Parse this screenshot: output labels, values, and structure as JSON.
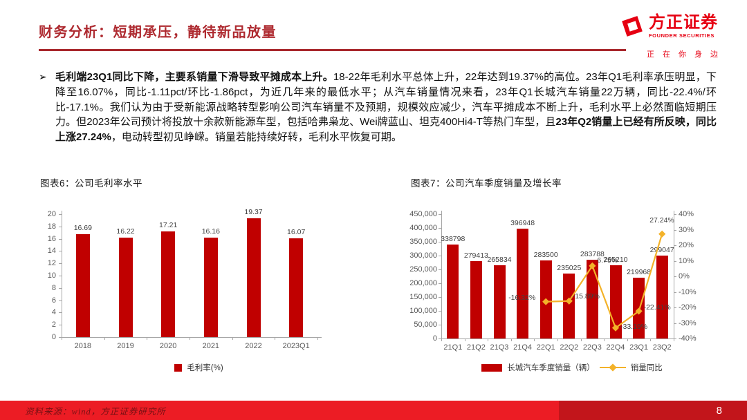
{
  "header": {
    "title": "财务分析：短期承压，静待新品放量",
    "logo": {
      "name": "方正证券",
      "sub": "FOUNDER SECURITIES",
      "tagline": "正在你身边"
    }
  },
  "paragraph": {
    "bullet": "➢",
    "segments": [
      {
        "text": "毛利端23Q1同比下降，主要系销量下滑导致平摊成本上升。",
        "bold": true
      },
      {
        "text": "18-22年毛利水平总体上升，22年达到19.37%的高位。23年Q1毛利率承压明显，下降至16.07%，同比-1.11pct/环比-1.86pct，为近几年来的最低水平；从汽车销量情况来看，23年Q1长城汽车销量22万辆，同比-22.4%/环比-17.1%。我们认为由于受新能源战略转型影响公司汽车销量不及预期，规模效应减少，汽车平摊成本不断上升，毛利水平上必然面临短期压力。但2023年公司预计将投放十余款新能源车型，包括哈弗枭龙、Wei牌蓝山、坦克400Hi4-T等热门车型，且",
        "bold": false
      },
      {
        "text": "23年Q2销量上已经有所反映，同比上涨27.24%",
        "bold": true
      },
      {
        "text": "，电动转型初见峥嵘。销量若能持续好转，毛利水平恢复可期。",
        "bold": false
      }
    ]
  },
  "chart_data": [
    {
      "type": "bar",
      "title": "图表6：公司毛利率水平",
      "categories": [
        "2018",
        "2019",
        "2020",
        "2021",
        "2022",
        "2023Q1"
      ],
      "values": [
        16.69,
        16.22,
        17.21,
        16.16,
        19.37,
        16.07
      ],
      "ylim": [
        0,
        20
      ],
      "ytick_step": 2,
      "legend": [
        "毛利率(%)"
      ],
      "bar_color": "#c00000",
      "grid": false,
      "legend_position": "bottom"
    },
    {
      "type": "bar+line",
      "title": "图表7：公司汽车季度销量及增长率",
      "categories": [
        "21Q1",
        "21Q2",
        "21Q3",
        "21Q4",
        "22Q1",
        "22Q2",
        "22Q3",
        "22Q4",
        "23Q1",
        "23Q2"
      ],
      "series": [
        {
          "name": "长城汽车季度销量（辆）",
          "type": "bar",
          "axis": "left",
          "values": [
            338798,
            279413,
            265834,
            396948,
            283500,
            235025,
            283788,
            265210,
            219968,
            299047
          ]
        },
        {
          "name": "销量同比",
          "type": "line",
          "axis": "right",
          "values": [
            null,
            null,
            null,
            null,
            -16.32,
            -15.89,
            6.75,
            -33.19,
            -22.41,
            27.24
          ],
          "labels": [
            null,
            null,
            null,
            null,
            "-16.32%",
            "-15.89%",
            "6.75%",
            "-33.19%",
            "-22.41%",
            "27.24%"
          ]
        }
      ],
      "left_ylim": [
        0,
        450000
      ],
      "left_ytick_step": 50000,
      "right_ylim": [
        -40,
        40
      ],
      "right_ytick_step": 10,
      "bar_color": "#c00000",
      "line_color": "#f3b229",
      "grid": false,
      "legend_position": "bottom"
    }
  ],
  "footer": {
    "source": "资料来源：wind，方正证券研究所",
    "page": "8"
  }
}
